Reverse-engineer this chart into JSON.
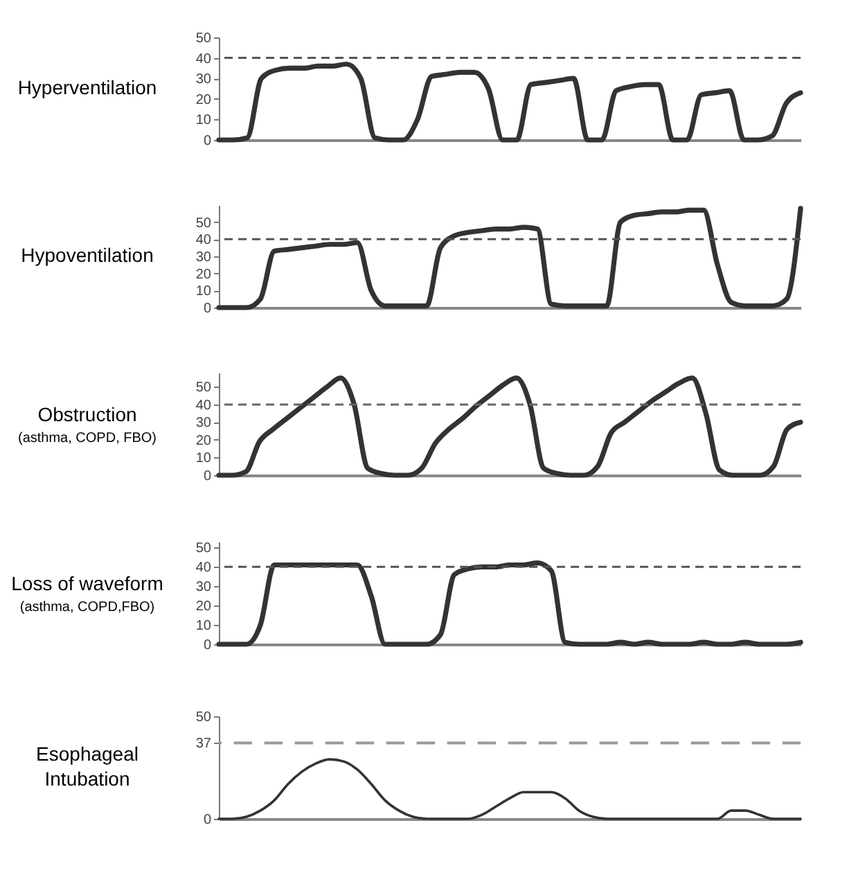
{
  "chart_data": [
    {
      "type": "line",
      "title": "Hyperventilation",
      "categories": [
        null,
        null,
        null,
        null,
        null,
        null,
        null,
        null,
        null,
        null,
        null,
        null,
        null,
        null,
        null,
        null,
        null,
        null,
        null,
        null,
        null,
        null,
        null,
        null,
        null,
        null,
        null,
        null,
        null,
        null,
        null,
        null,
        null,
        null,
        null,
        null,
        null,
        null,
        null,
        null,
        null,
        null
      ],
      "series": [
        {
          "color": "#333333",
          "values": [
            0,
            0,
            1,
            30,
            34,
            35,
            35,
            36,
            36,
            37,
            30,
            1,
            0,
            0,
            10,
            31,
            32,
            33,
            33,
            25,
            0,
            0,
            27,
            28,
            29,
            30,
            0,
            0,
            24,
            26,
            27,
            27,
            0,
            0,
            22,
            23,
            24,
            0,
            0,
            2,
            18,
            23
          ]
        }
      ],
      "ylim": [
        0,
        50
      ],
      "yticks": [
        0,
        10,
        20,
        30,
        40,
        50
      ],
      "grid": false,
      "tick_labels": "y",
      "ref_lines": [
        {
          "axis": "y",
          "value": 40,
          "color": "#555555",
          "line_style": "dashed"
        }
      ]
    },
    {
      "type": "line",
      "title": "Hypoventilation",
      "categories": [
        null,
        null,
        null,
        null,
        null,
        null,
        null,
        null,
        null,
        null,
        null,
        null,
        null,
        null,
        null,
        null,
        null,
        null,
        null,
        null,
        null,
        null,
        null,
        null,
        null,
        null,
        null,
        null,
        null,
        null,
        null,
        null,
        null,
        null,
        null,
        null,
        null,
        null,
        null,
        null,
        null,
        null,
        null
      ],
      "series": [
        {
          "color": "#333333",
          "values": [
            0,
            0,
            0,
            5,
            33,
            34,
            35,
            36,
            37,
            37,
            38,
            10,
            1,
            1,
            1,
            1,
            35,
            42,
            44,
            45,
            46,
            46,
            47,
            46,
            2,
            1,
            1,
            1,
            1,
            50,
            54,
            55,
            56,
            56,
            57,
            57,
            25,
            3,
            1,
            1,
            1,
            5,
            58
          ]
        }
      ],
      "ylim": [
        0,
        60
      ],
      "yticks": [
        0,
        10,
        20,
        30,
        40,
        50
      ],
      "grid": false,
      "tick_labels": "y",
      "ref_lines": [
        {
          "axis": "y",
          "value": 40,
          "color": "#555555",
          "line_style": "dashed"
        }
      ]
    },
    {
      "type": "line",
      "title": "Obstruction",
      "subtitle": "(asthma, COPD, FBO)",
      "categories": [
        null,
        null,
        null,
        null,
        null,
        null,
        null,
        null,
        null,
        null,
        null,
        null,
        null,
        null,
        null,
        null,
        null,
        null,
        null,
        null,
        null,
        null,
        null,
        null,
        null,
        null,
        null,
        null,
        null,
        null,
        null,
        null,
        null,
        null,
        null,
        null,
        null,
        null,
        null,
        null,
        null,
        null,
        null,
        null
      ],
      "series": [
        {
          "color": "#333333",
          "values": [
            0,
            0,
            2,
            19,
            26,
            32,
            38,
            44,
            50,
            55,
            40,
            4,
            1,
            0,
            0,
            4,
            18,
            26,
            32,
            39,
            45,
            51,
            55,
            40,
            4,
            1,
            0,
            0,
            5,
            24,
            30,
            36,
            42,
            47,
            52,
            55,
            35,
            3,
            0,
            0,
            0,
            5,
            26,
            30
          ]
        }
      ],
      "ylim": [
        0,
        58
      ],
      "yticks": [
        0,
        10,
        20,
        30,
        40,
        50
      ],
      "grid": false,
      "tick_labels": "y",
      "ref_lines": [
        {
          "axis": "y",
          "value": 40,
          "color": "#666666",
          "line_style": "dashed"
        }
      ]
    },
    {
      "type": "line",
      "title": "Loss of waveform",
      "subtitle": "(asthma, COPD,FBO)",
      "categories": [
        null,
        null,
        null,
        null,
        null,
        null,
        null,
        null,
        null,
        null,
        null,
        null,
        null,
        null,
        null,
        null,
        null,
        null,
        null,
        null,
        null,
        null,
        null,
        null,
        null,
        null,
        null,
        null,
        null,
        null,
        null,
        null,
        null,
        null,
        null,
        null,
        null,
        null,
        null,
        null,
        null,
        null,
        null
      ],
      "series": [
        {
          "color": "#333333",
          "values": [
            0,
            0,
            0,
            10,
            41,
            41,
            41,
            41,
            41,
            41,
            41,
            25,
            0,
            0,
            0,
            0,
            5,
            36,
            39,
            40,
            40,
            41,
            41,
            42,
            38,
            1,
            0,
            0,
            0,
            1,
            0,
            1,
            0,
            0,
            0,
            1,
            0,
            0,
            1,
            0,
            0,
            0,
            1
          ]
        }
      ],
      "ylim": [
        0,
        53
      ],
      "yticks": [
        0,
        10,
        20,
        30,
        40,
        50
      ],
      "grid": false,
      "tick_labels": "y",
      "ref_lines": [
        {
          "axis": "y",
          "value": 40,
          "color": "#555555",
          "line_style": "dashed"
        }
      ]
    },
    {
      "type": "line",
      "title": "Esophageal Intubation",
      "categories": [
        null,
        null,
        null,
        null,
        null,
        null,
        null,
        null,
        null,
        null,
        null,
        null,
        null,
        null,
        null,
        null,
        null,
        null,
        null,
        null,
        null,
        null,
        null,
        null,
        null,
        null,
        null,
        null,
        null,
        null,
        null,
        null,
        null,
        null,
        null,
        null,
        null,
        null,
        null,
        null,
        null,
        null,
        null
      ],
      "series": [
        {
          "color": "#333333",
          "values": [
            0,
            0,
            1,
            4,
            9,
            17,
            23,
            27,
            29,
            28,
            24,
            17,
            9,
            4,
            1,
            0,
            0,
            0,
            0,
            2,
            6,
            10,
            13,
            13,
            13,
            10,
            4,
            1,
            0,
            0,
            0,
            0,
            0,
            0,
            0,
            0,
            0,
            4,
            4,
            2,
            0,
            0,
            0
          ]
        }
      ],
      "ylim": [
        0,
        50
      ],
      "yticks": [
        0,
        37,
        50
      ],
      "grid": false,
      "tick_labels": "y",
      "ref_lines": [
        {
          "axis": "y",
          "value": 37,
          "color": "#999999",
          "line_style": "dashed"
        }
      ]
    }
  ]
}
